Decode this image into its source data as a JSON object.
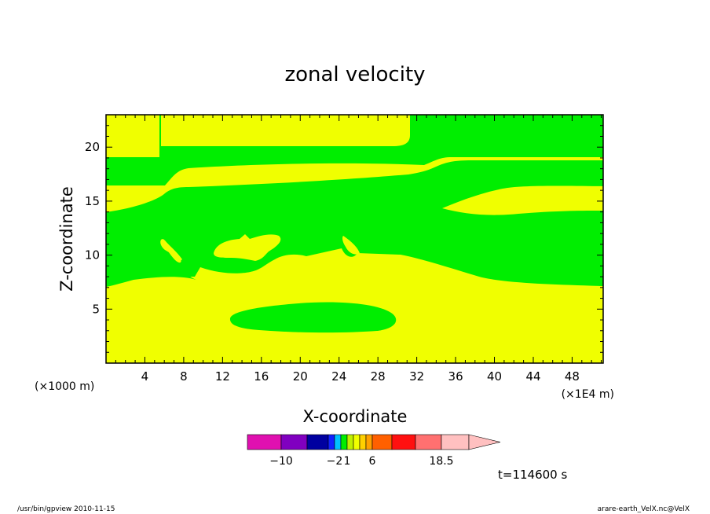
{
  "chart_data": {
    "type": "heatmap",
    "title": "zonal velocity",
    "xlabel": "X-coordinate",
    "ylabel": "Z-coordinate",
    "x_unit_label": "(×1E4 m)",
    "y_unit_label": "(×1000 m)",
    "xlim": [
      0,
      51.2
    ],
    "ylim": [
      0,
      23
    ],
    "x_ticks": [
      4,
      8,
      12,
      16,
      20,
      24,
      28,
      32,
      36,
      40,
      44,
      48
    ],
    "y_ticks": [
      5,
      10,
      15,
      20
    ],
    "time_label": "t=114600 s",
    "colors": {
      "band_low": "#f0ff00",
      "band_high": "#00ee00",
      "frame": "#000000"
    },
    "colorbar": {
      "segments": [
        {
          "color": "#e010b0"
        },
        {
          "color": "#8000c0"
        },
        {
          "color": "#0000a0"
        },
        {
          "color": "#1020ff"
        },
        {
          "color": "#00c0ff"
        },
        {
          "color": "#00ee00"
        },
        {
          "color": "#c0f000"
        },
        {
          "color": "#f0ff00"
        },
        {
          "color": "#ffd000"
        },
        {
          "color": "#ffa000"
        },
        {
          "color": "#ff6000"
        },
        {
          "color": "#ff1010"
        },
        {
          "color": "#ff7070"
        },
        {
          "color": "#ffc0c0"
        }
      ],
      "labels": [
        {
          "text": "−10",
          "pos": "seg1"
        },
        {
          "text": "−2",
          "pos": "seg4"
        },
        {
          "text": "1",
          "pos": "seg6"
        },
        {
          "text": "6",
          "pos": "seg10"
        },
        {
          "text": "18.5",
          "pos": "seg13"
        }
      ]
    }
  },
  "footer": {
    "left": "/usr/bin/gpview   2010-11-15",
    "right": "arare-earth_VelX.nc@VelX"
  }
}
